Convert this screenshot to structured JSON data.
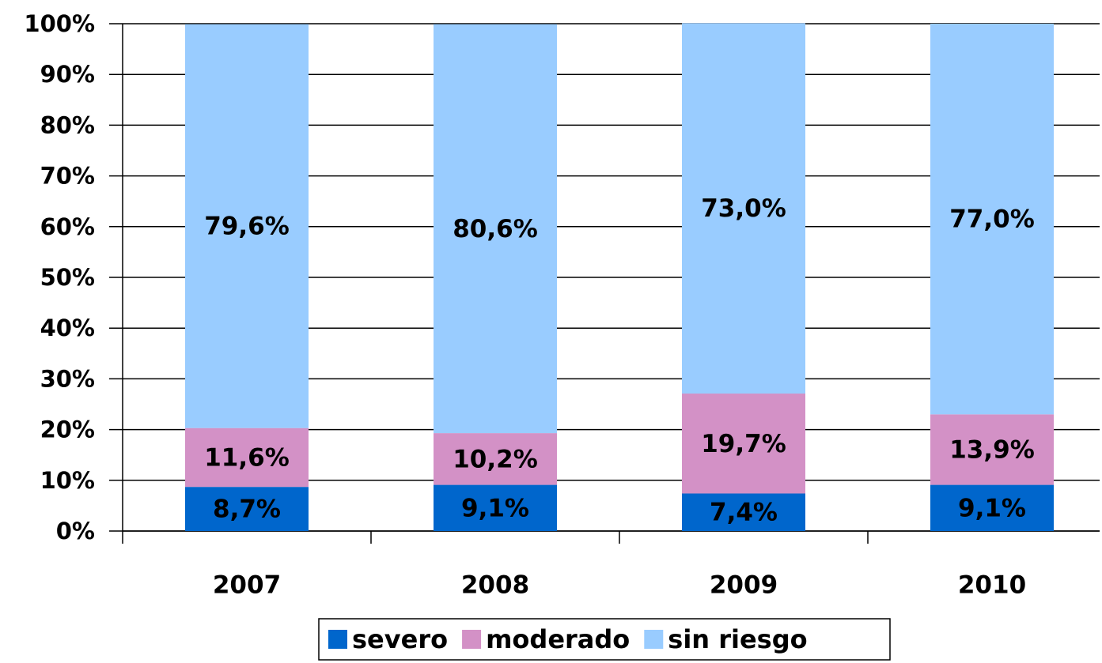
{
  "chart_data": {
    "type": "stacked_bar",
    "categories": [
      "2007",
      "2008",
      "2009",
      "2010"
    ],
    "series": [
      {
        "name": "severo",
        "color": "#0066cc",
        "values": [
          8.7,
          9.1,
          7.4,
          9.1
        ],
        "value_labels": [
          "8,7%",
          "9,1%",
          "7,4%",
          "9,1%"
        ]
      },
      {
        "name": "moderado",
        "color": "#d391c6",
        "values": [
          11.6,
          10.2,
          19.7,
          13.9
        ],
        "value_labels": [
          "11,6%",
          "10,2%",
          "19,7%",
          "13,9%"
        ]
      },
      {
        "name": "sin riesgo",
        "color": "#99ccff",
        "values": [
          79.6,
          80.6,
          73.0,
          77.0
        ],
        "value_labels": [
          "79,6%",
          "80,6%",
          "73,0%",
          "77,0%"
        ]
      }
    ],
    "ylim": [
      0,
      100
    ],
    "yticks": [
      {
        "value": 0,
        "label": "0%"
      },
      {
        "value": 10,
        "label": "10%"
      },
      {
        "value": 20,
        "label": "20%"
      },
      {
        "value": 30,
        "label": "30%"
      },
      {
        "value": 40,
        "label": "40%"
      },
      {
        "value": 50,
        "label": "50%"
      },
      {
        "value": 60,
        "label": "60%"
      },
      {
        "value": 70,
        "label": "70%"
      },
      {
        "value": 80,
        "label": "80%"
      },
      {
        "value": 90,
        "label": "90%"
      },
      {
        "value": 100,
        "label": "100%"
      }
    ],
    "grid": true,
    "legend": "bottom"
  }
}
